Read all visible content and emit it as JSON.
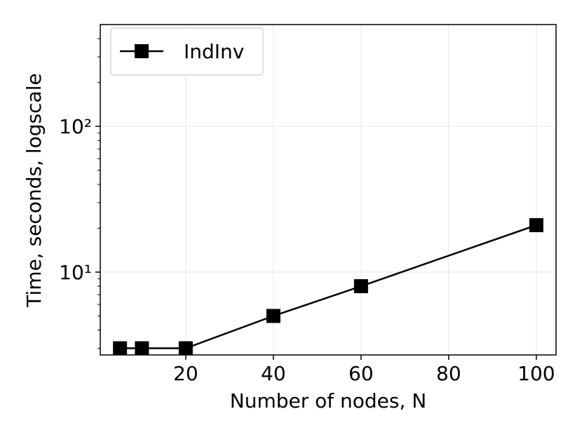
{
  "chart_data": {
    "type": "line",
    "x_label": "Number of nodes, N",
    "y_label": "Time, seconds, logscale",
    "x": [
      5,
      10,
      20,
      40,
      60,
      100
    ],
    "series": [
      {
        "name": "IndInv",
        "color": "#000000",
        "marker": "square",
        "values": [
          3,
          3,
          3,
          5,
          8,
          21
        ]
      }
    ],
    "xlim": [
      0.5,
      104.5
    ],
    "ylim": [
      2.7,
      500
    ],
    "ylog": true,
    "xticks": [
      20,
      40,
      60,
      80,
      100
    ],
    "yticks": [
      {
        "value": 10,
        "label": "10¹"
      },
      {
        "value": 100,
        "label": "10²"
      }
    ],
    "yminorticks": [
      3,
      4,
      5,
      6,
      7,
      8,
      9,
      20,
      30,
      40,
      50,
      60,
      70,
      80,
      90,
      200,
      300,
      400
    ],
    "grid": true,
    "legend": "upper left"
  }
}
